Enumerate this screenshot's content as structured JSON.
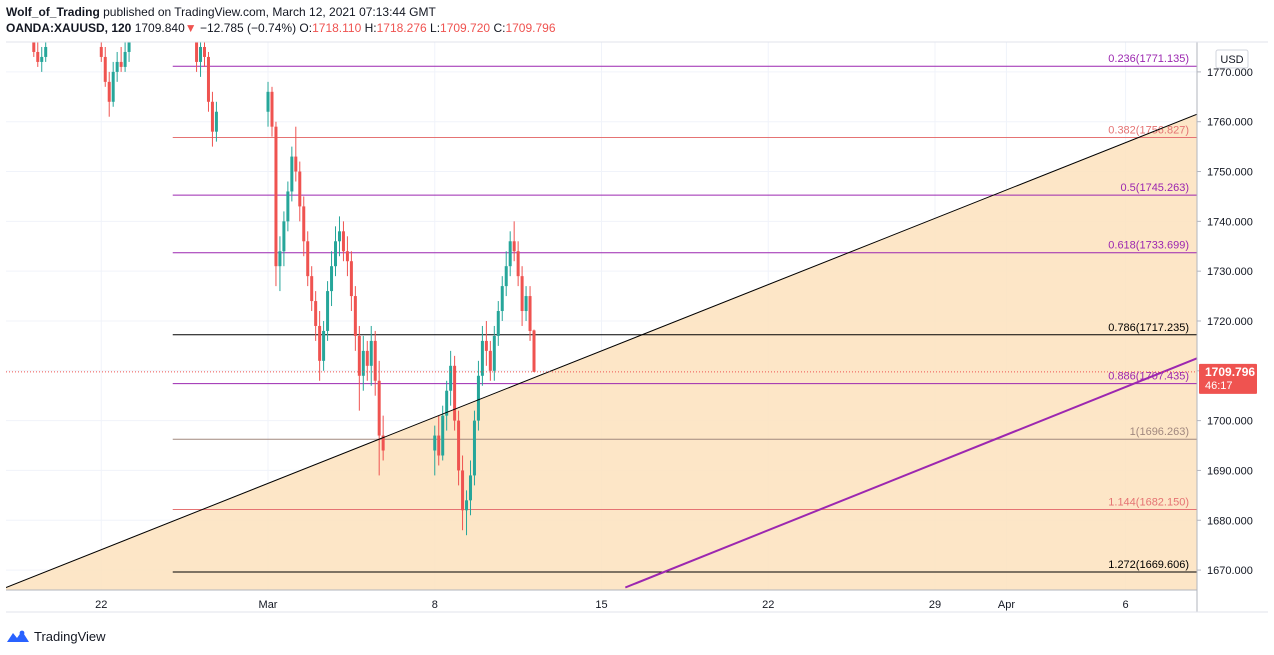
{
  "header": {
    "author": "Wolf_of_Trading",
    "published": "published on TradingView.com, March 12, 2021 07:13:44 GMT",
    "symbol": "OANDA:XAUUSD, 120",
    "last": "1709.840",
    "arrow": "▼",
    "change": "−12.785 (−0.74%)",
    "o_label": "O:",
    "o_value": "1718.110",
    "h_label": "H:",
    "h_value": "1718.276",
    "l_label": "L:",
    "l_value": "1709.720",
    "c_label": "C:",
    "c_value": "1709.796"
  },
  "footer": {
    "brand": "TradingView"
  },
  "colors": {
    "up": "#26a69a",
    "down": "#ef5350",
    "fill": "#fde2bd",
    "purple": "#9c27b0",
    "fib_red": "#e57373",
    "fib_black": "#000000"
  },
  "chart_data": {
    "type": "candlestick",
    "title": "OANDA:XAUUSD, 120",
    "currency_label": "USD",
    "ylim": [
      1666,
      1776
    ],
    "y_ticks": [
      "1670.000",
      "1680.000",
      "1690.000",
      "1700.000",
      "1710.000",
      "1720.000",
      "1730.000",
      "1740.000",
      "1750.000",
      "1760.000",
      "1770.000"
    ],
    "x_ticks": [
      {
        "label": "22",
        "date": "2021-02-22"
      },
      {
        "label": "Mar",
        "date": "2021-03-01"
      },
      {
        "label": "8",
        "date": "2021-03-08"
      },
      {
        "label": "15",
        "date": "2021-03-15"
      },
      {
        "label": "22",
        "date": "2021-03-22"
      },
      {
        "label": "29",
        "date": "2021-03-29"
      },
      {
        "label": "Apr",
        "date": "2021-04-01"
      },
      {
        "label": "6",
        "date": "2021-04-06"
      }
    ],
    "x_range": [
      "2021-02-18",
      "2021-04-09"
    ],
    "price_label": {
      "value": "1709.796",
      "countdown": "46:17"
    },
    "fib_levels": [
      {
        "label": "0.236(1771.135)",
        "value": 1771.135,
        "color": "#9c27b0"
      },
      {
        "label": "0.382(1756.827)",
        "value": 1756.827,
        "color": "#e57373"
      },
      {
        "label": "0.5(1745.263)",
        "value": 1745.263,
        "color": "#9c27b0"
      },
      {
        "label": "0.618(1733.699)",
        "value": 1733.699,
        "color": "#9c27b0"
      },
      {
        "label": "0.786(1717.235)",
        "value": 1717.235,
        "color": "#000000"
      },
      {
        "label": "0.886(1707.435)",
        "value": 1707.435,
        "color": "#9c27b0"
      },
      {
        "label": "1(1696.263)",
        "value": 1696.263,
        "color": "#a1887f"
      },
      {
        "label": "1.144(1682.150)",
        "value": 1682.15,
        "color": "#e57373"
      },
      {
        "label": "1.272(1669.606)",
        "value": 1669.606,
        "color": "#000000"
      }
    ],
    "fib_start_date": "2021-02-25",
    "trendlines": [
      {
        "name": "upper",
        "start": {
          "date": "2021-02-18",
          "price": 1666.5
        },
        "end": {
          "date": "2021-04-09",
          "price": 1761.5
        },
        "color": "#000000"
      },
      {
        "name": "lower",
        "start": {
          "date": "2021-03-16",
          "price": 1666.5
        },
        "end": {
          "date": "2021-04-09",
          "price": 1712.5
        },
        "color": "#9c27b0"
      }
    ],
    "candles": [
      {
        "t": "2021-02-19 04:00",
        "o": 1776,
        "h": 1777,
        "l": 1773,
        "c": 1774
      },
      {
        "t": "2021-02-19 08:00",
        "o": 1774,
        "h": 1776,
        "l": 1771,
        "c": 1772
      },
      {
        "t": "2021-02-19 12:00",
        "o": 1772,
        "h": 1775,
        "l": 1770,
        "c": 1773
      },
      {
        "t": "2021-02-19 16:00",
        "o": 1773,
        "h": 1776,
        "l": 1772,
        "c": 1775
      },
      {
        "t": "2021-02-22 00:00",
        "o": 1775,
        "h": 1777,
        "l": 1772,
        "c": 1773
      },
      {
        "t": "2021-02-22 04:00",
        "o": 1773,
        "h": 1775,
        "l": 1767,
        "c": 1768
      },
      {
        "t": "2021-02-22 08:00",
        "o": 1768,
        "h": 1770,
        "l": 1761,
        "c": 1764
      },
      {
        "t": "2021-02-22 12:00",
        "o": 1764,
        "h": 1772,
        "l": 1763,
        "c": 1770
      },
      {
        "t": "2021-02-22 16:00",
        "o": 1770,
        "h": 1774,
        "l": 1768,
        "c": 1772
      },
      {
        "t": "2021-02-22 20:00",
        "o": 1772,
        "h": 1775,
        "l": 1770,
        "c": 1771
      },
      {
        "t": "2021-02-23 00:00",
        "o": 1771,
        "h": 1776,
        "l": 1770,
        "c": 1774
      },
      {
        "t": "2021-02-23 04:00",
        "o": 1774,
        "h": 1777,
        "l": 1772,
        "c": 1776
      },
      {
        "t": "2021-02-26 00:00",
        "o": 1776,
        "h": 1777,
        "l": 1770,
        "c": 1772
      },
      {
        "t": "2021-02-26 04:00",
        "o": 1772,
        "h": 1776,
        "l": 1769,
        "c": 1775
      },
      {
        "t": "2021-02-26 08:00",
        "o": 1775,
        "h": 1777,
        "l": 1771,
        "c": 1773
      },
      {
        "t": "2021-02-26 12:00",
        "o": 1773,
        "h": 1774,
        "l": 1762,
        "c": 1764
      },
      {
        "t": "2021-02-26 16:00",
        "o": 1764,
        "h": 1766,
        "l": 1755,
        "c": 1758
      },
      {
        "t": "2021-02-26 20:00",
        "o": 1758,
        "h": 1764,
        "l": 1756,
        "c": 1762
      },
      {
        "t": "2021-03-01 00:00",
        "o": 1762,
        "h": 1768,
        "l": 1759,
        "c": 1766
      },
      {
        "t": "2021-03-01 04:00",
        "o": 1766,
        "h": 1767,
        "l": 1757,
        "c": 1759
      },
      {
        "t": "2021-03-01 08:00",
        "o": 1759,
        "h": 1760,
        "l": 1727,
        "c": 1731
      },
      {
        "t": "2021-03-01 12:00",
        "o": 1731,
        "h": 1737,
        "l": 1726,
        "c": 1734
      },
      {
        "t": "2021-03-01 16:00",
        "o": 1734,
        "h": 1742,
        "l": 1731,
        "c": 1740
      },
      {
        "t": "2021-03-01 20:00",
        "o": 1740,
        "h": 1748,
        "l": 1738,
        "c": 1746
      },
      {
        "t": "2021-03-02 00:00",
        "o": 1746,
        "h": 1755,
        "l": 1744,
        "c": 1753
      },
      {
        "t": "2021-03-02 04:00",
        "o": 1753,
        "h": 1759,
        "l": 1748,
        "c": 1750
      },
      {
        "t": "2021-03-02 08:00",
        "o": 1750,
        "h": 1752,
        "l": 1740,
        "c": 1743
      },
      {
        "t": "2021-03-02 12:00",
        "o": 1743,
        "h": 1745,
        "l": 1733,
        "c": 1736
      },
      {
        "t": "2021-03-02 16:00",
        "o": 1736,
        "h": 1738,
        "l": 1727,
        "c": 1729
      },
      {
        "t": "2021-03-02 20:00",
        "o": 1729,
        "h": 1731,
        "l": 1722,
        "c": 1724
      },
      {
        "t": "2021-03-03 00:00",
        "o": 1724,
        "h": 1726,
        "l": 1716,
        "c": 1719
      },
      {
        "t": "2021-03-03 04:00",
        "o": 1719,
        "h": 1722,
        "l": 1708,
        "c": 1712
      },
      {
        "t": "2021-03-03 08:00",
        "o": 1712,
        "h": 1720,
        "l": 1710,
        "c": 1718
      },
      {
        "t": "2021-03-03 12:00",
        "o": 1718,
        "h": 1728,
        "l": 1716,
        "c": 1726
      },
      {
        "t": "2021-03-03 16:00",
        "o": 1726,
        "h": 1734,
        "l": 1723,
        "c": 1731
      },
      {
        "t": "2021-03-03 20:00",
        "o": 1731,
        "h": 1739,
        "l": 1729,
        "c": 1736
      },
      {
        "t": "2021-03-04 00:00",
        "o": 1736,
        "h": 1741,
        "l": 1733,
        "c": 1738
      },
      {
        "t": "2021-03-04 04:00",
        "o": 1738,
        "h": 1740,
        "l": 1732,
        "c": 1734
      },
      {
        "t": "2021-03-04 08:00",
        "o": 1734,
        "h": 1737,
        "l": 1729,
        "c": 1732
      },
      {
        "t": "2021-03-04 12:00",
        "o": 1732,
        "h": 1734,
        "l": 1722,
        "c": 1725
      },
      {
        "t": "2021-03-04 16:00",
        "o": 1725,
        "h": 1727,
        "l": 1714,
        "c": 1717
      },
      {
        "t": "2021-03-04 20:00",
        "o": 1717,
        "h": 1719,
        "l": 1702,
        "c": 1709
      },
      {
        "t": "2021-03-05 00:00",
        "o": 1709,
        "h": 1717,
        "l": 1706,
        "c": 1714
      },
      {
        "t": "2021-03-05 04:00",
        "o": 1714,
        "h": 1716,
        "l": 1708,
        "c": 1711
      },
      {
        "t": "2021-03-05 08:00",
        "o": 1711,
        "h": 1719,
        "l": 1707,
        "c": 1716
      },
      {
        "t": "2021-03-05 12:00",
        "o": 1716,
        "h": 1718,
        "l": 1705,
        "c": 1708
      },
      {
        "t": "2021-03-05 16:00",
        "o": 1708,
        "h": 1712,
        "l": 1689,
        "c": 1697
      },
      {
        "t": "2021-03-05 20:00",
        "o": 1697,
        "h": 1701,
        "l": 1692,
        "c": 1694
      },
      {
        "t": "2021-03-08 00:00",
        "o": 1694,
        "h": 1699,
        "l": 1689,
        "c": 1697
      },
      {
        "t": "2021-03-08 04:00",
        "o": 1697,
        "h": 1701,
        "l": 1691,
        "c": 1693
      },
      {
        "t": "2021-03-08 08:00",
        "o": 1693,
        "h": 1703,
        "l": 1692,
        "c": 1701
      },
      {
        "t": "2021-03-08 12:00",
        "o": 1701,
        "h": 1708,
        "l": 1698,
        "c": 1706
      },
      {
        "t": "2021-03-08 16:00",
        "o": 1706,
        "h": 1714,
        "l": 1703,
        "c": 1711
      },
      {
        "t": "2021-03-08 20:00",
        "o": 1711,
        "h": 1713,
        "l": 1698,
        "c": 1700
      },
      {
        "t": "2021-03-09 00:00",
        "o": 1700,
        "h": 1702,
        "l": 1687,
        "c": 1690
      },
      {
        "t": "2021-03-09 04:00",
        "o": 1690,
        "h": 1693,
        "l": 1678,
        "c": 1682
      },
      {
        "t": "2021-03-09 08:00",
        "o": 1682,
        "h": 1686,
        "l": 1677,
        "c": 1684
      },
      {
        "t": "2021-03-09 12:00",
        "o": 1684,
        "h": 1692,
        "l": 1681,
        "c": 1689
      },
      {
        "t": "2021-03-09 16:00",
        "o": 1689,
        "h": 1702,
        "l": 1687,
        "c": 1700
      },
      {
        "t": "2021-03-09 20:00",
        "o": 1700,
        "h": 1712,
        "l": 1698,
        "c": 1709
      },
      {
        "t": "2021-03-10 00:00",
        "o": 1709,
        "h": 1719,
        "l": 1707,
        "c": 1716
      },
      {
        "t": "2021-03-10 04:00",
        "o": 1716,
        "h": 1720,
        "l": 1711,
        "c": 1714
      },
      {
        "t": "2021-03-10 08:00",
        "o": 1714,
        "h": 1716,
        "l": 1708,
        "c": 1710
      },
      {
        "t": "2021-03-10 12:00",
        "o": 1710,
        "h": 1719,
        "l": 1708,
        "c": 1717
      },
      {
        "t": "2021-03-10 16:00",
        "o": 1717,
        "h": 1724,
        "l": 1715,
        "c": 1722
      },
      {
        "t": "2021-03-10 20:00",
        "o": 1722,
        "h": 1729,
        "l": 1720,
        "c": 1727
      },
      {
        "t": "2021-03-11 00:00",
        "o": 1727,
        "h": 1734,
        "l": 1725,
        "c": 1731
      },
      {
        "t": "2021-03-11 04:00",
        "o": 1731,
        "h": 1738,
        "l": 1729,
        "c": 1736
      },
      {
        "t": "2021-03-11 08:00",
        "o": 1736,
        "h": 1740,
        "l": 1732,
        "c": 1734
      },
      {
        "t": "2021-03-11 12:00",
        "o": 1734,
        "h": 1736,
        "l": 1727,
        "c": 1729
      },
      {
        "t": "2021-03-11 16:00",
        "o": 1729,
        "h": 1731,
        "l": 1719,
        "c": 1722
      },
      {
        "t": "2021-03-11 20:00",
        "o": 1722,
        "h": 1727,
        "l": 1720,
        "c": 1725
      },
      {
        "t": "2021-03-12 00:00",
        "o": 1725,
        "h": 1727,
        "l": 1716,
        "c": 1718
      },
      {
        "t": "2021-03-12 04:00",
        "o": 1718.11,
        "h": 1718.276,
        "l": 1709.72,
        "c": 1709.796
      }
    ]
  }
}
